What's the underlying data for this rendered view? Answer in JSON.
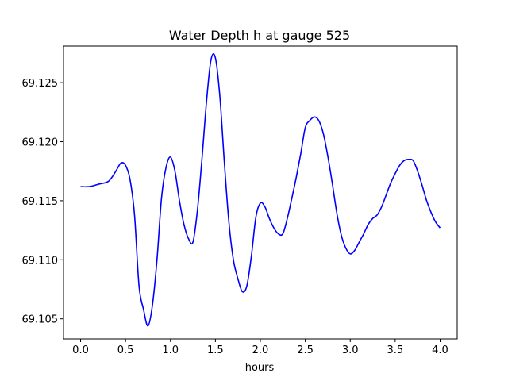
{
  "chart_data": {
    "type": "line",
    "title": "Water Depth h at gauge 525",
    "xlabel": "hours",
    "ylabel": "",
    "xlim": [
      -0.19,
      4.19
    ],
    "ylim": [
      69.1033,
      69.1281
    ],
    "grid": false,
    "x_ticks": [
      0.0,
      0.5,
      1.0,
      1.5,
      2.0,
      2.5,
      3.0,
      3.5,
      4.0
    ],
    "x_tick_labels": [
      "0.0",
      "0.5",
      "1.0",
      "1.5",
      "2.0",
      "2.5",
      "3.0",
      "3.5",
      "4.0"
    ],
    "y_ticks": [
      69.105,
      69.11,
      69.115,
      69.12,
      69.125
    ],
    "y_tick_labels": [
      "69.105",
      "69.110",
      "69.115",
      "69.120",
      "69.125"
    ],
    "series": [
      {
        "color": "#0000ff",
        "x": [
          0.0,
          0.1,
          0.2,
          0.3,
          0.35,
          0.4,
          0.45,
          0.5,
          0.55,
          0.6,
          0.65,
          0.7,
          0.75,
          0.8,
          0.85,
          0.9,
          0.95,
          1.0,
          1.05,
          1.1,
          1.15,
          1.2,
          1.25,
          1.3,
          1.35,
          1.4,
          1.45,
          1.5,
          1.55,
          1.6,
          1.65,
          1.7,
          1.75,
          1.8,
          1.85,
          1.9,
          1.95,
          2.0,
          2.05,
          2.1,
          2.15,
          2.2,
          2.25,
          2.3,
          2.35,
          2.4,
          2.45,
          2.5,
          2.55,
          2.6,
          2.65,
          2.7,
          2.75,
          2.8,
          2.85,
          2.9,
          2.95,
          3.0,
          3.05,
          3.1,
          3.15,
          3.2,
          3.25,
          3.3,
          3.35,
          3.4,
          3.45,
          3.5,
          3.55,
          3.6,
          3.65,
          3.7,
          3.75,
          3.8,
          3.85,
          3.9,
          3.95,
          4.0
        ],
        "values": [
          69.1162,
          69.1162,
          69.1164,
          69.1166,
          69.117,
          69.1176,
          69.1182,
          69.118,
          69.1168,
          69.1138,
          69.1078,
          69.1058,
          69.1044,
          69.1062,
          69.11,
          69.1152,
          69.1178,
          69.1187,
          69.1175,
          69.115,
          69.113,
          69.1118,
          69.1115,
          69.1142,
          69.1185,
          69.1233,
          69.1269,
          69.1271,
          69.1238,
          69.1182,
          69.1132,
          69.11,
          69.1084,
          69.1073,
          69.1078,
          69.1103,
          69.1136,
          69.1148,
          69.1145,
          69.1135,
          69.1127,
          69.1122,
          69.1122,
          69.1135,
          69.1152,
          69.117,
          69.119,
          69.1212,
          69.1218,
          69.1221,
          69.1218,
          69.1207,
          69.1188,
          69.1165,
          69.114,
          69.1121,
          69.111,
          69.1105,
          69.1108,
          69.1115,
          69.1122,
          69.113,
          69.1135,
          69.1138,
          69.1145,
          69.1155,
          69.1165,
          69.1173,
          69.118,
          69.1184,
          69.1185,
          69.1184,
          69.1175,
          69.1163,
          69.115,
          69.114,
          69.1132,
          69.1127
        ]
      }
    ]
  }
}
